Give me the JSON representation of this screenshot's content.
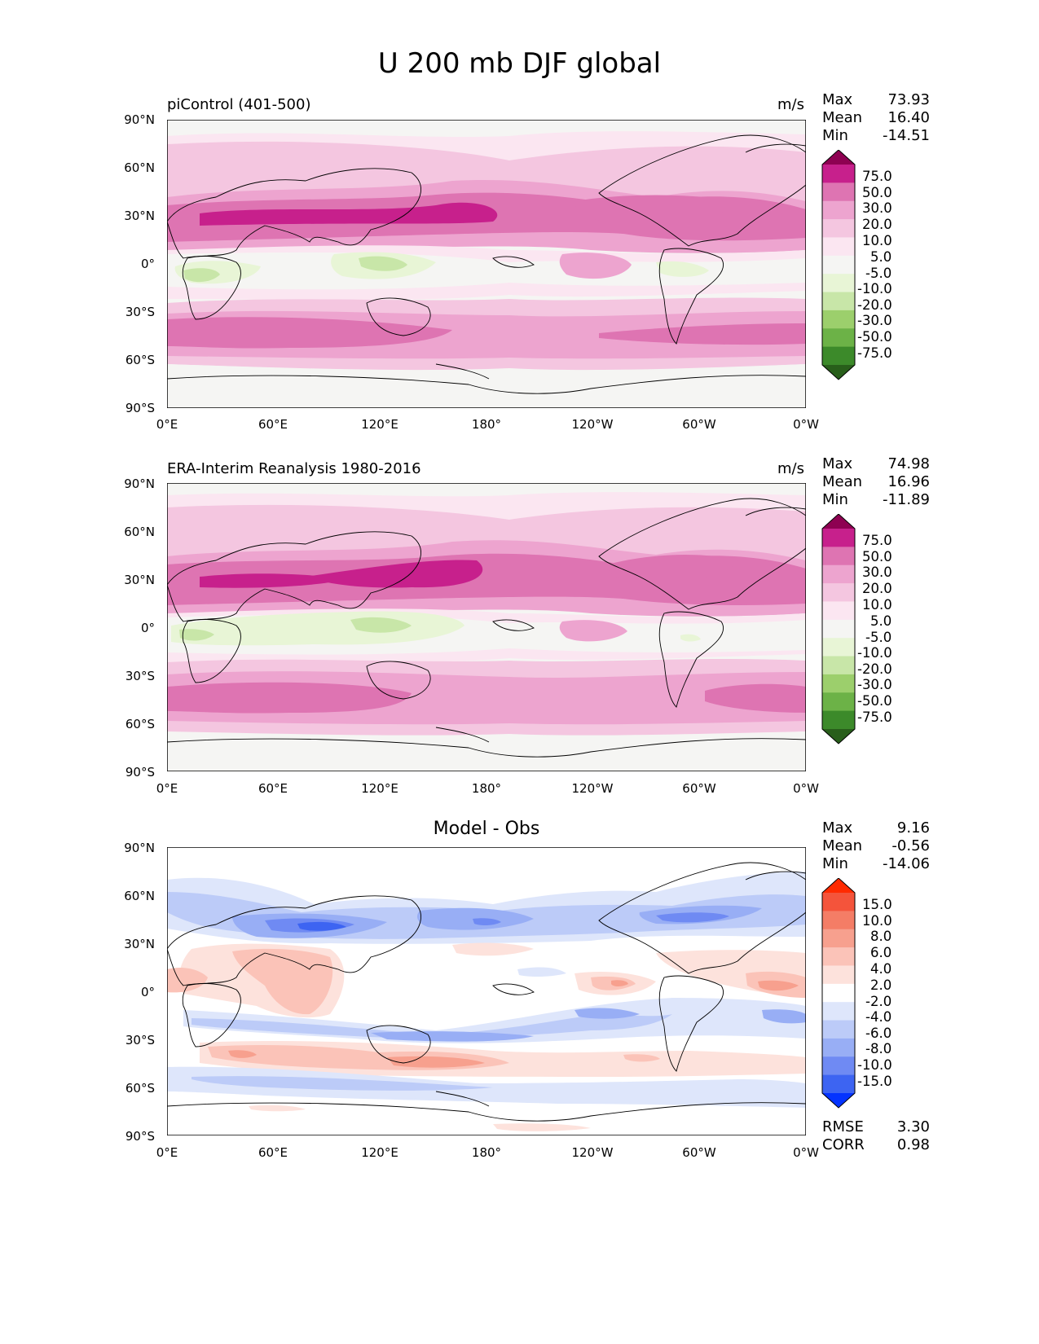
{
  "title": "U 200 mb DJF global",
  "x_ticks": [
    "0°E",
    "60°E",
    "120°E",
    "180°",
    "120°W",
    "60°W",
    "0°W"
  ],
  "y_ticks": [
    "90°N",
    "60°N",
    "30°N",
    "0°",
    "30°S",
    "60°S",
    "90°S"
  ],
  "colors": {
    "field_colormap": [
      "#285e1a",
      "#3c8a2a",
      "#6cb247",
      "#9ccf6c",
      "#c8e6a8",
      "#e8f5d6",
      "#f5f5f3",
      "#fbe6f1",
      "#f4c6e0",
      "#eda4cf",
      "#de74b2",
      "#c7208c",
      "#8e0152"
    ],
    "diff_colormap": [
      "#0433ff",
      "#3d64f2",
      "#6f8af3",
      "#98aef5",
      "#bccbf8",
      "#dee6fb",
      "#ffffff",
      "#fde2dc",
      "#fbc3b8",
      "#f7a08e",
      "#f47d66",
      "#f4543b",
      "#ff2a00"
    ]
  },
  "panels": {
    "model": {
      "label": "piControl (401-500)",
      "units": "m/s",
      "stats": {
        "max_label": "Max",
        "max": "73.93",
        "mean_label": "Mean",
        "mean": "16.40",
        "min_label": "Min",
        "min": "-14.51"
      },
      "colorbar_levels": [
        "75.0",
        "50.0",
        "30.0",
        "20.0",
        "10.0",
        "5.0",
        "-5.0",
        "-10.0",
        "-20.0",
        "-30.0",
        "-50.0",
        "-75.0"
      ]
    },
    "obs": {
      "label": "ERA-Interim Reanalysis 1980-2016",
      "units": "m/s",
      "stats": {
        "max_label": "Max",
        "max": "74.98",
        "mean_label": "Mean",
        "mean": "16.96",
        "min_label": "Min",
        "min": "-11.89"
      },
      "colorbar_levels": [
        "75.0",
        "50.0",
        "30.0",
        "20.0",
        "10.0",
        "5.0",
        "-5.0",
        "-10.0",
        "-20.0",
        "-30.0",
        "-50.0",
        "-75.0"
      ]
    },
    "diff": {
      "label": "Model - Obs",
      "stats": {
        "max_label": "Max",
        "max": "9.16",
        "mean_label": "Mean",
        "mean": "-0.56",
        "min_label": "Min",
        "min": "-14.06"
      },
      "colorbar_levels": [
        "15.0",
        "10.0",
        "8.0",
        "6.0",
        "4.0",
        "2.0",
        "-2.0",
        "-4.0",
        "-6.0",
        "-8.0",
        "-10.0",
        "-15.0"
      ],
      "metrics": {
        "rmse_label": "RMSE",
        "rmse": "3.30",
        "corr_label": "CORR",
        "corr": "0.98"
      }
    }
  }
}
